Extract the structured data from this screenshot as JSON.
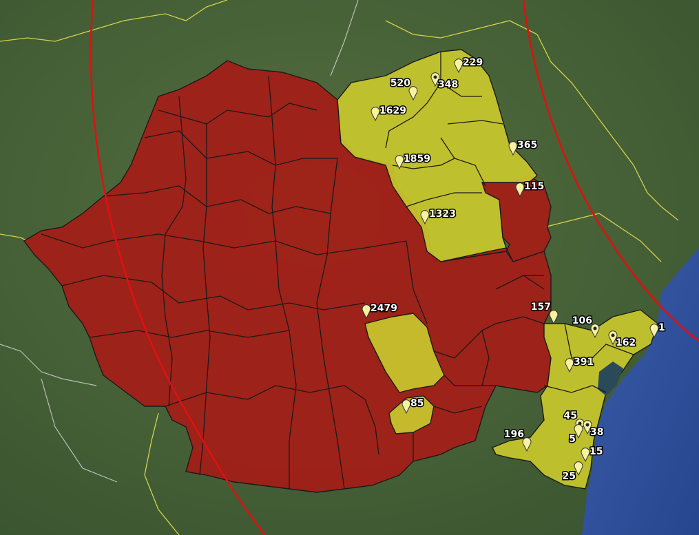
{
  "map": {
    "colors": {
      "land": "#4a6a3c",
      "sea": "#2f4f9e",
      "red_region": "#a41d17",
      "yellow_region": "#c9c82c",
      "county_border": "#1a1a1a",
      "range_circle": "#e01010",
      "national_border": "#e6e04a",
      "marker_fill": "#f6f2a0"
    },
    "markers": [
      {
        "id": "m229",
        "label": "229",
        "icon": "pin-icon"
      },
      {
        "id": "m520",
        "label": "520",
        "icon": "pin-icon"
      },
      {
        "id": "m348",
        "label": "348",
        "icon": "star-pin-icon"
      },
      {
        "id": "m1629",
        "label": "1629",
        "icon": "pin-icon"
      },
      {
        "id": "m365",
        "label": "365",
        "icon": "pin-icon"
      },
      {
        "id": "m1859",
        "label": "1859",
        "icon": "pin-icon"
      },
      {
        "id": "m115",
        "label": "115",
        "icon": "pin-icon"
      },
      {
        "id": "m1323",
        "label": "1323",
        "icon": "pin-icon"
      },
      {
        "id": "m2479",
        "label": "2479",
        "icon": "pin-icon"
      },
      {
        "id": "m157",
        "label": "157",
        "icon": "pin-icon"
      },
      {
        "id": "m106",
        "label": "106",
        "icon": "star-pin-icon"
      },
      {
        "id": "m162",
        "label": "162",
        "icon": "star-pin-icon"
      },
      {
        "id": "m1",
        "label": "1",
        "icon": "pin-icon"
      },
      {
        "id": "m391",
        "label": "391",
        "icon": "pin-icon"
      },
      {
        "id": "m85",
        "label": "85",
        "icon": "pin-icon"
      },
      {
        "id": "m45",
        "label": "45",
        "icon": "star-pin-icon"
      },
      {
        "id": "m38",
        "label": "38",
        "icon": "star-pin-icon"
      },
      {
        "id": "m5",
        "label": "5",
        "icon": "pin-icon"
      },
      {
        "id": "m196",
        "label": "196",
        "icon": "pin-icon"
      },
      {
        "id": "m15",
        "label": "15",
        "icon": "pin-icon"
      },
      {
        "id": "m25",
        "label": "25",
        "icon": "pin-icon"
      }
    ]
  }
}
